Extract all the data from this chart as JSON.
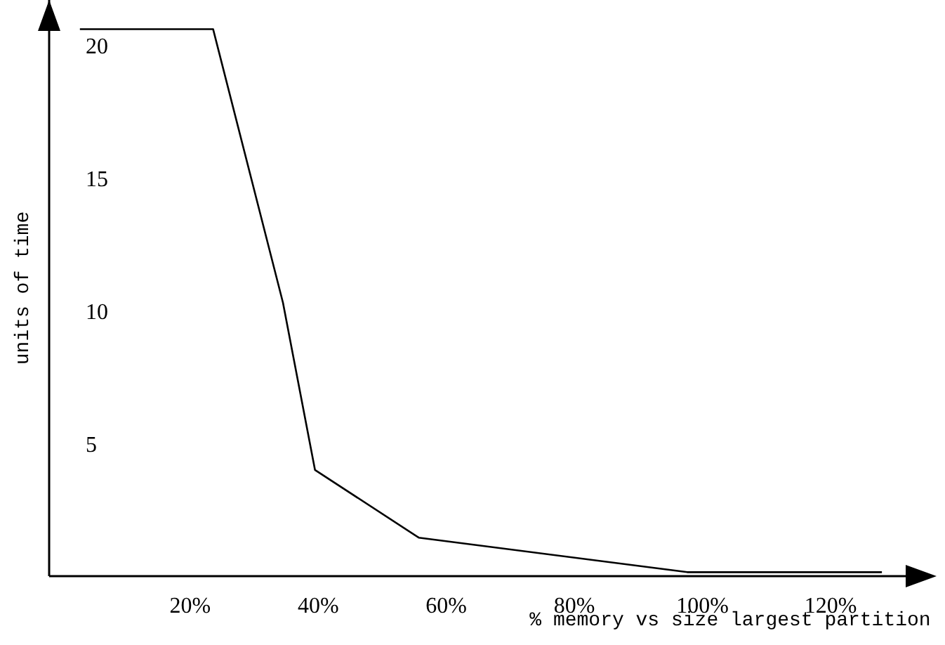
{
  "chart_data": {
    "type": "line",
    "xlabel": "% memory vs size largest partition",
    "ylabel": "units of time",
    "series": [
      {
        "color": "#000000",
        "x": [
          2.8,
          23.6,
          34.5,
          39.5,
          55.7,
          97.6,
          128
        ],
        "values": [
          20.6,
          20.6,
          10.3,
          4.0,
          1.45,
          0.15,
          0.15
        ]
      }
    ],
    "xlim": [
      -2,
      135
    ],
    "ylim": [
      0,
      21.7
    ],
    "xticks": [
      {
        "value": 20,
        "label": "20%"
      },
      {
        "value": 40,
        "label": "40%"
      },
      {
        "value": 60,
        "label": "60%"
      },
      {
        "value": 80,
        "label": "80%"
      },
      {
        "value": 100,
        "label": "100%"
      },
      {
        "value": 120,
        "label": "120%"
      }
    ],
    "yticks": [
      5,
      10,
      15,
      20
    ],
    "grid": false,
    "legend": false,
    "marker": "none",
    "line_style": "solid"
  }
}
